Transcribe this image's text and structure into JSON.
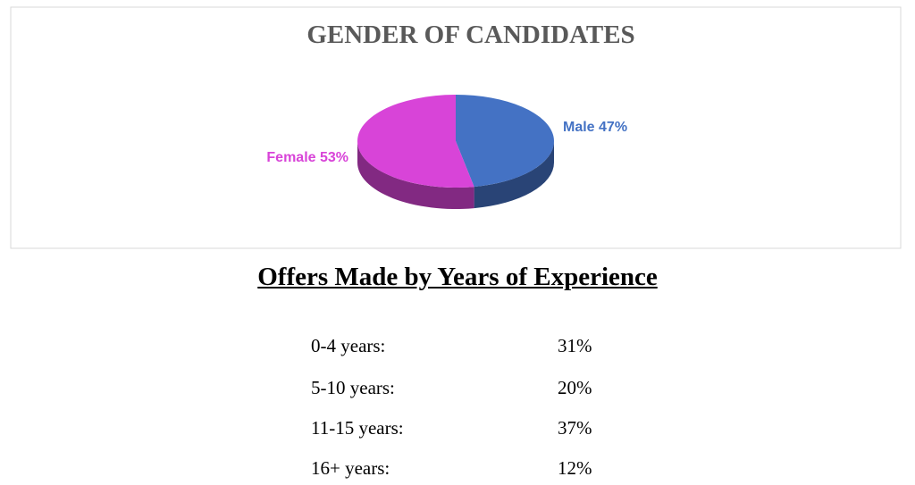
{
  "chart_data": {
    "type": "pie",
    "title": "GENDER OF CANDIDATES",
    "categories": [
      "Male",
      "Female"
    ],
    "values": [
      47,
      53
    ],
    "value_labels": [
      "Male 47%",
      "Female 53%"
    ],
    "colors": [
      "#4472c4",
      "#d844d8"
    ]
  },
  "table": {
    "title": "Offers Made by Years of Experience",
    "rows": [
      [
        "0-4 years:",
        "31%"
      ],
      [
        "5-10 years:",
        "20%"
      ],
      [
        "11-15 years:",
        "37%"
      ],
      [
        "16+ years:",
        "12%"
      ]
    ]
  }
}
